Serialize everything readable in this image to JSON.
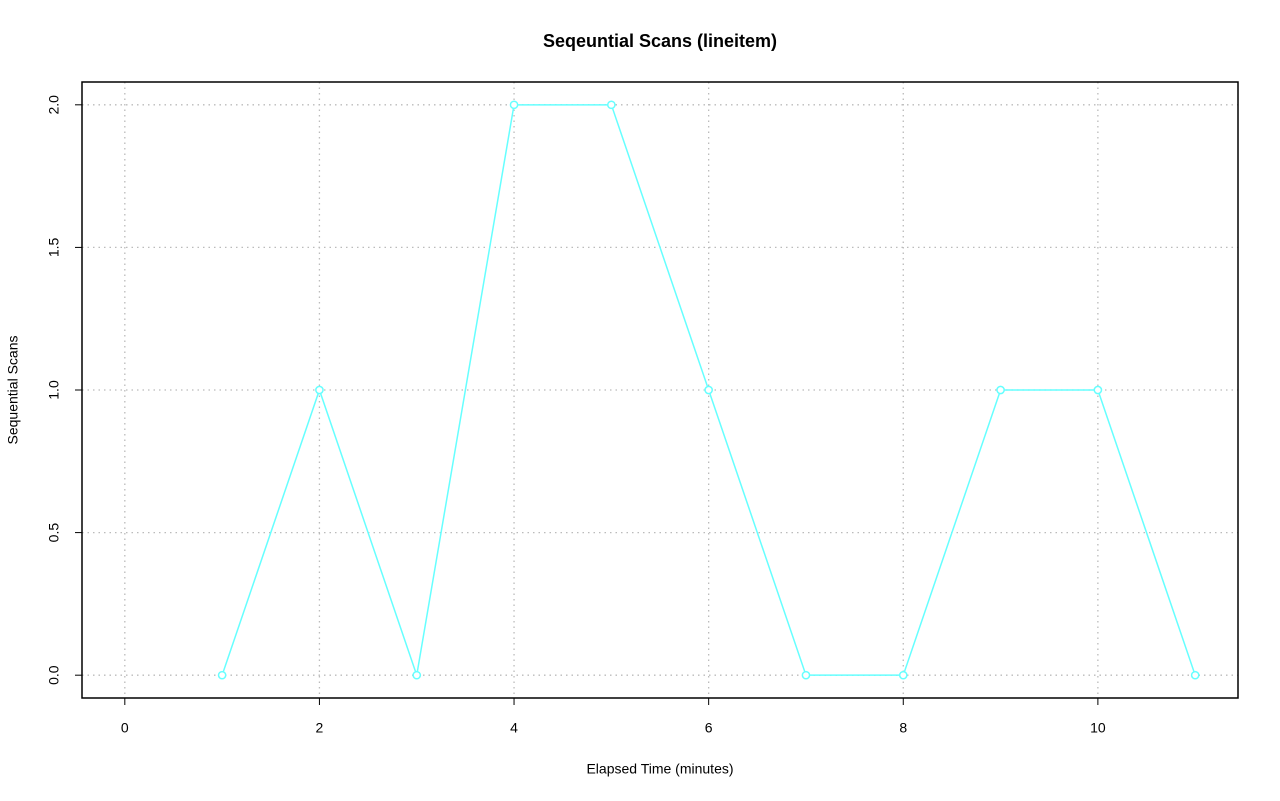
{
  "chart_data": {
    "type": "line",
    "title": "Seqeuntial Scans (lineitem)",
    "x_label": "Elapsed Time (minutes)",
    "y_label": "Sequential Scans",
    "x": [
      1,
      2,
      3,
      4,
      5,
      6,
      7,
      8,
      9,
      10,
      11
    ],
    "values": [
      0,
      1,
      0,
      2,
      2,
      1,
      0,
      0,
      1,
      1,
      0
    ],
    "color": "#66ffff",
    "xlim": [
      -0.44,
      11.44
    ],
    "ylim": [
      -0.08,
      2.08
    ],
    "xticks": [
      0,
      2,
      4,
      6,
      8,
      10
    ],
    "yticks": [
      {
        "value": 0,
        "label": "0.0"
      },
      0.5,
      {
        "value": 1,
        "label": "1.0"
      },
      1.5,
      {
        "value": 2,
        "label": "2.0"
      }
    ],
    "grid": true
  }
}
